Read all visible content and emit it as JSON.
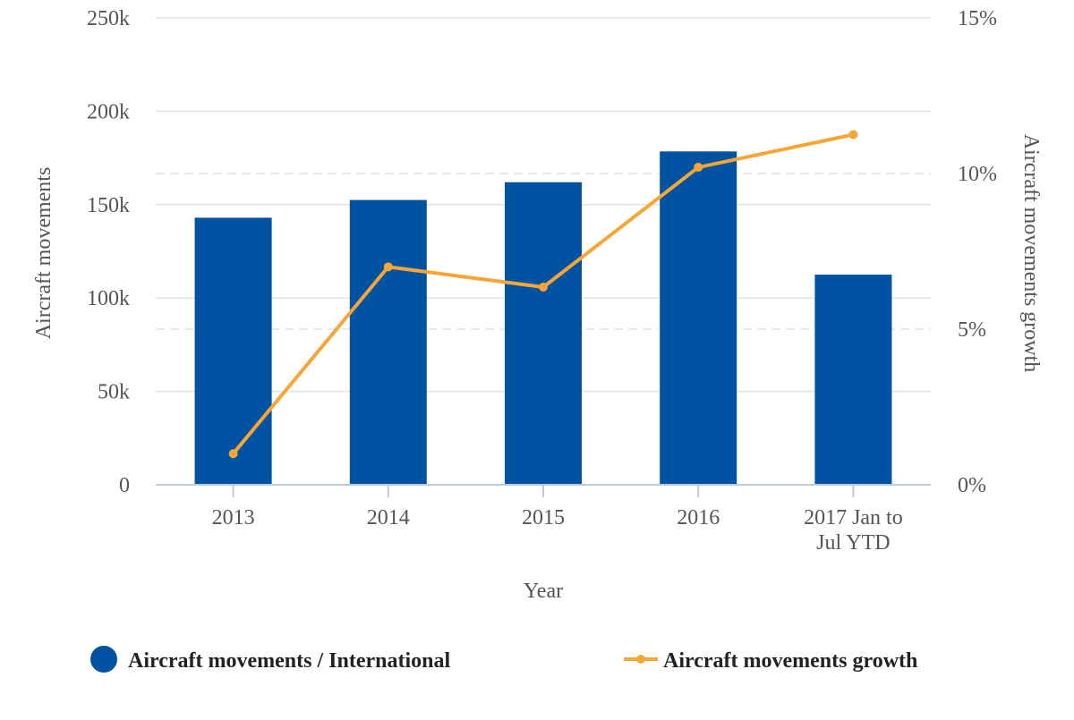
{
  "chart_data": {
    "type": "bar",
    "categories": [
      "2013",
      "2014",
      "2015",
      "2016",
      "2017 Jan to Jul YTD"
    ],
    "category_label_lines": [
      [
        "2013"
      ],
      [
        "2014"
      ],
      [
        "2015"
      ],
      [
        "2016"
      ],
      [
        "2017 Jan to",
        "Jul YTD"
      ]
    ],
    "xlabel": "Year",
    "ylabel": "Aircraft movements",
    "y2label": "Aircraft movements growth",
    "ylim": [
      0,
      250000
    ],
    "y2lim": [
      0,
      15
    ],
    "y_ticks": [
      {
        "value": 0,
        "label": "0"
      },
      {
        "value": 50000,
        "label": "50k"
      },
      {
        "value": 100000,
        "label": "100k"
      },
      {
        "value": 150000,
        "label": "150k"
      },
      {
        "value": 200000,
        "label": "200k"
      },
      {
        "value": 250000,
        "label": "250k"
      }
    ],
    "y2_ticks": [
      {
        "value": 0,
        "label": "0%"
      },
      {
        "value": 5,
        "label": "5%"
      },
      {
        "value": 10,
        "label": "10%"
      },
      {
        "value": 15,
        "label": "15%"
      }
    ],
    "series": [
      {
        "name": "Aircraft movements / International",
        "type": "bar",
        "axis": "left",
        "color": "#0052a3",
        "values": [
          143000,
          152500,
          162000,
          178500,
          112500
        ]
      },
      {
        "name": "Aircraft movements growth",
        "type": "line",
        "axis": "right",
        "color": "#f7a535",
        "values": [
          1.0,
          7.0,
          6.35,
          10.2,
          11.25
        ]
      }
    ],
    "grid": true,
    "legend_position": "bottom"
  }
}
